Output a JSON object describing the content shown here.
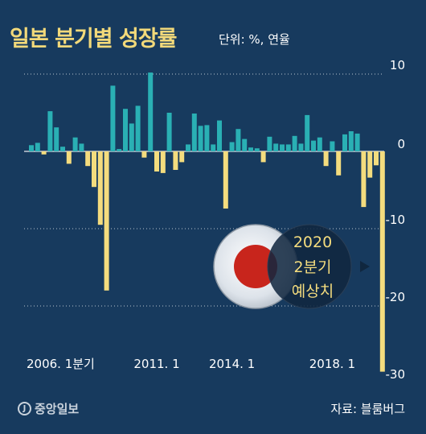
{
  "header": {
    "title": "일본 분기별 성장률",
    "unit": "단위: %, 연율"
  },
  "footer": {
    "logo": "중앙일보",
    "source": "자료: 블룸버그"
  },
  "callout": {
    "line1": "2020",
    "line2": "2분기",
    "line3": "예상치"
  },
  "colors": {
    "background": "#173a5e",
    "positive": "#2ab0b4",
    "negative": "#f4dc7e",
    "title": "#f2d97a"
  },
  "chart_data": {
    "type": "bar",
    "ylim": [
      -30,
      10
    ],
    "y_ticks": [
      10,
      0,
      -10,
      -20,
      -30
    ],
    "x_tick_labels": [
      {
        "index": 0,
        "label": "2006. 1분기"
      },
      {
        "index": 20,
        "label": "2011. 1"
      },
      {
        "index": 32,
        "label": "2014. 1"
      },
      {
        "index": 48,
        "label": "2018. 1"
      }
    ],
    "values": [
      0.8,
      1.1,
      -0.4,
      5.2,
      3.1,
      0.6,
      -1.6,
      1.8,
      1.0,
      -1.9,
      -4.6,
      -9.5,
      -18.0,
      8.5,
      0.3,
      5.5,
      3.6,
      5.9,
      -0.8,
      10.2,
      -2.6,
      -2.8,
      5.0,
      -2.4,
      -1.4,
      0.9,
      4.9,
      3.3,
      3.4,
      0.9,
      4.0,
      -7.4,
      1.2,
      2.9,
      1.6,
      0.5,
      0.4,
      -1.4,
      1.9,
      1.0,
      0.9,
      0.9,
      2.0,
      1.0,
      4.7,
      1.4,
      1.8,
      -1.9,
      1.3,
      -3.1,
      2.2,
      2.6,
      2.3,
      -7.2,
      -3.4,
      -1.8,
      -28.5
    ]
  }
}
